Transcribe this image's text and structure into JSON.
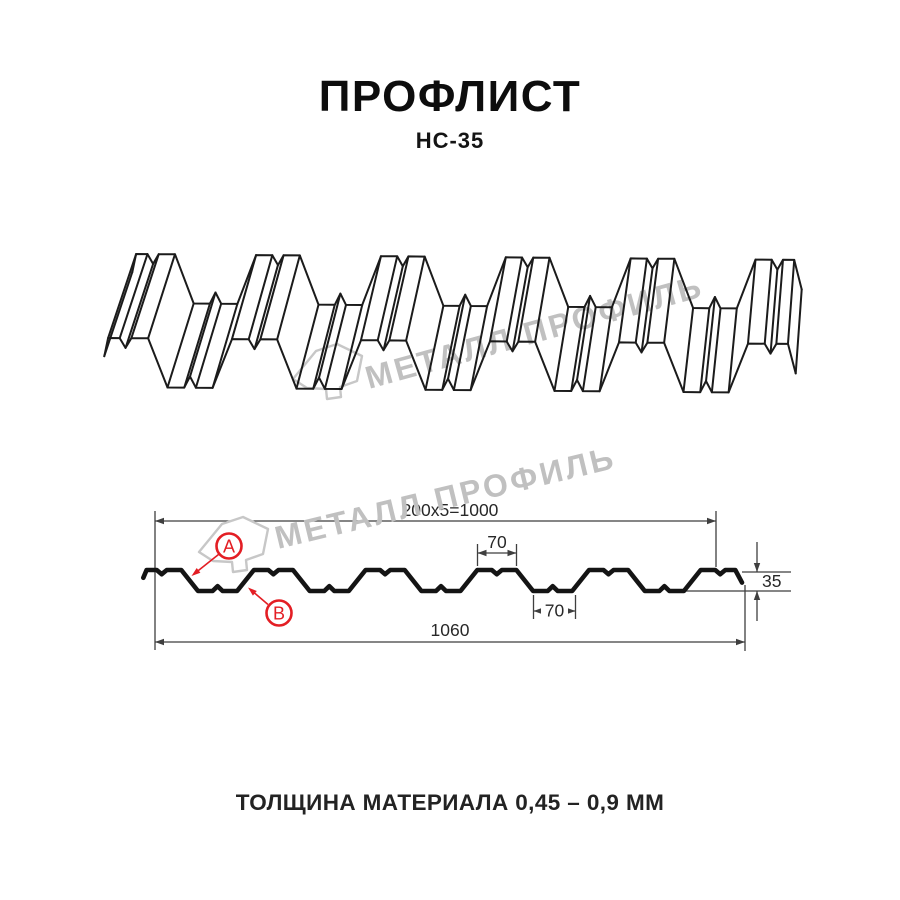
{
  "header": {
    "title": "ПРОФЛИСТ",
    "subtitle": "НС-35"
  },
  "watermark": {
    "brand": "МЕТАЛЛ ПРОФИЛЬ",
    "gray": "#c0c0c0"
  },
  "diagram": {
    "dim_top": "200x5=1000",
    "dim_bottom": "1060",
    "dim_crest": "70",
    "dim_valley": "70",
    "dim_height": "35",
    "marker_a": "A",
    "marker_b": "B",
    "accent_red": "#e31e24",
    "line_black": "#1b1b1b"
  },
  "footer": {
    "text": "ТОЛЩИНА МАТЕРИАЛА 0,45 – 0,9 ММ"
  }
}
